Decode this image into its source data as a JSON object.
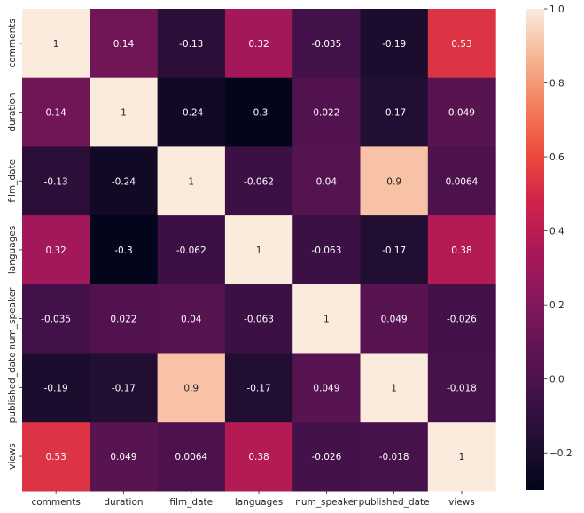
{
  "chart_data": {
    "type": "heatmap",
    "title": "",
    "xlabel": "",
    "ylabel": "",
    "x": [
      "comments",
      "duration",
      "film_date",
      "languages",
      "num_speaker",
      "published_date",
      "views"
    ],
    "y": [
      "comments",
      "duration",
      "film_date",
      "languages",
      "num_speaker",
      "published_date",
      "views"
    ],
    "values": [
      [
        1,
        0.14,
        -0.13,
        0.32,
        -0.035,
        -0.19,
        0.53
      ],
      [
        0.14,
        1,
        -0.24,
        -0.3,
        0.022,
        -0.17,
        0.049
      ],
      [
        -0.13,
        -0.24,
        1,
        -0.062,
        0.04,
        0.9,
        0.0064
      ],
      [
        0.32,
        -0.3,
        -0.062,
        1,
        -0.063,
        -0.17,
        0.38
      ],
      [
        -0.035,
        0.022,
        0.04,
        -0.063,
        1,
        0.049,
        -0.026
      ],
      [
        -0.19,
        -0.17,
        0.9,
        -0.17,
        0.049,
        1,
        -0.018
      ],
      [
        0.53,
        0.049,
        0.0064,
        0.38,
        -0.026,
        -0.018,
        1
      ]
    ],
    "annotations": [
      [
        "1",
        "0.14",
        "-0.13",
        "0.32",
        "-0.035",
        "-0.19",
        "0.53"
      ],
      [
        "0.14",
        "1",
        "-0.24",
        "-0.3",
        "0.022",
        "-0.17",
        "0.049"
      ],
      [
        "-0.13",
        "-0.24",
        "1",
        "-0.062",
        "0.04",
        "0.9",
        "0.0064"
      ],
      [
        "0.32",
        "-0.3",
        "-0.062",
        "1",
        "-0.063",
        "-0.17",
        "0.38"
      ],
      [
        "-0.035",
        "0.022",
        "0.04",
        "-0.063",
        "1",
        "0.049",
        "-0.026"
      ],
      [
        "-0.19",
        "-0.17",
        "0.9",
        "-0.17",
        "0.049",
        "1",
        "-0.018"
      ],
      [
        "0.53",
        "0.049",
        "0.0064",
        "0.38",
        "-0.026",
        "-0.018",
        "1"
      ]
    ],
    "colorscale": "rocket",
    "vmin": -0.3,
    "vmax": 1.0,
    "colorbar": {
      "ticks": [
        -0.2,
        0.0,
        0.2,
        0.4,
        0.6,
        0.8,
        1.0
      ],
      "tick_labels": [
        "−0.2",
        "0.0",
        "0.2",
        "0.4",
        "0.6",
        "0.8",
        "1.0"
      ]
    },
    "legend_placement": "right",
    "grid": false
  }
}
